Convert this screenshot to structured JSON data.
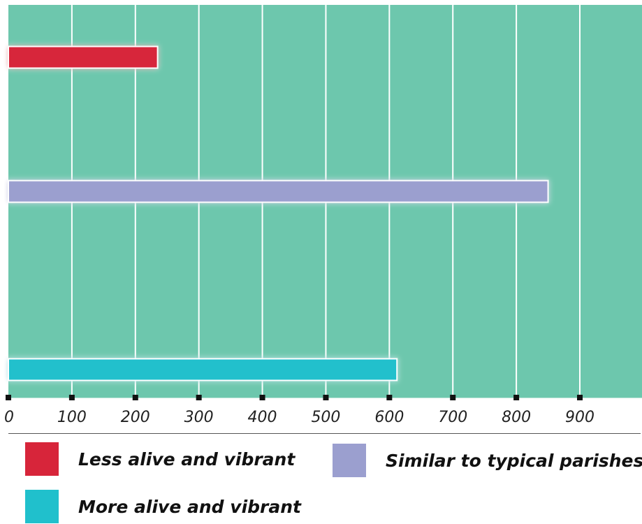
{
  "chart_data": {
    "type": "bar",
    "orientation": "horizontal",
    "categories": [
      "Less alive and vibrant",
      "Similar to typical parishes",
      "More alive and vibrant"
    ],
    "values": [
      235,
      850,
      612
    ],
    "colors": [
      "#d7253a",
      "#9b9fcf",
      "#20c0cc"
    ],
    "plot_background": "#6dc7ad",
    "gridline_color": "#ffffff",
    "xlim": [
      0,
      1000
    ],
    "x_ticks": [
      0,
      100,
      200,
      300,
      400,
      500,
      600,
      700,
      800,
      900
    ],
    "x_tick_labels": [
      "0",
      "100",
      "200",
      "300",
      "400",
      "500",
      "600",
      "700",
      "800",
      "900"
    ],
    "grid": true,
    "legend_position": "bottom",
    "title": "",
    "xlabel": "",
    "ylabel": ""
  },
  "legend": {
    "items": [
      {
        "label": "Less alive and vibrant",
        "color": "#d7253a"
      },
      {
        "label": "Similar to typical parishes",
        "color": "#9b9fcf"
      },
      {
        "label": "More alive and vibrant",
        "color": "#20c0cc"
      }
    ]
  }
}
